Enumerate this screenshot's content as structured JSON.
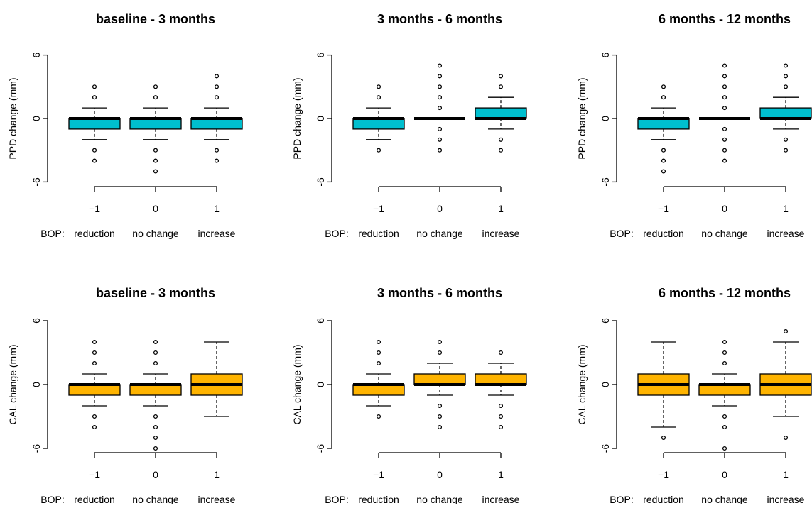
{
  "bop_prefix": "BOP:",
  "bop_labels": [
    "reduction",
    "no change",
    "increase"
  ],
  "colors": {
    "ppd_box": "#00BFCF",
    "cal_box": "#FFB400",
    "line": "#000000"
  },
  "chart_data": [
    {
      "type": "boxplot",
      "title": "baseline - 3 months",
      "ylabel": "PPD change (mm)",
      "ylim": [
        -6,
        6
      ],
      "yticks": [
        "6",
        "0",
        "-6"
      ],
      "xticks": [
        "−1",
        "0",
        "1"
      ],
      "box_color": "#00BFCF",
      "boxes": [
        {
          "x": "−1",
          "whisker_low": -2,
          "q1": -1,
          "median": 0,
          "q3": 0,
          "whisker_high": 1,
          "outliers": [
            3,
            2,
            -3,
            -4
          ]
        },
        {
          "x": "0",
          "whisker_low": -2,
          "q1": -1,
          "median": 0,
          "q3": 0,
          "whisker_high": 1,
          "outliers": [
            3,
            2,
            -3,
            -4,
            -5
          ]
        },
        {
          "x": "1",
          "whisker_low": -2,
          "q1": -1,
          "median": 0,
          "q3": 0,
          "whisker_high": 1,
          "outliers": [
            4,
            3,
            2,
            -3,
            -4
          ]
        }
      ]
    },
    {
      "type": "boxplot",
      "title": "3 months - 6 months",
      "ylabel": "PPD change (mm)",
      "ylim": [
        -6,
        6
      ],
      "yticks": [
        "6",
        "0",
        "-6"
      ],
      "xticks": [
        "−1",
        "0",
        "1"
      ],
      "box_color": "#00BFCF",
      "boxes": [
        {
          "x": "−1",
          "whisker_low": -2,
          "q1": -1,
          "median": 0,
          "q3": 0,
          "whisker_high": 1,
          "outliers": [
            3,
            2,
            -3
          ]
        },
        {
          "x": "0",
          "whisker_low": 0,
          "q1": 0,
          "median": 0,
          "q3": 0,
          "whisker_high": 0,
          "outliers": [
            5,
            4,
            3,
            2,
            1,
            -1,
            -2,
            -3
          ]
        },
        {
          "x": "1",
          "whisker_low": -1,
          "q1": 0,
          "median": 0,
          "q3": 1,
          "whisker_high": 2,
          "outliers": [
            4,
            3,
            -2,
            -3
          ]
        }
      ]
    },
    {
      "type": "boxplot",
      "title": "6 months - 12 months",
      "ylabel": "PPD change (mm)",
      "ylim": [
        -6,
        6
      ],
      "yticks": [
        "6",
        "0",
        "-6"
      ],
      "xticks": [
        "−1",
        "0",
        "1"
      ],
      "box_color": "#00BFCF",
      "boxes": [
        {
          "x": "−1",
          "whisker_low": -2,
          "q1": -1,
          "median": 0,
          "q3": 0,
          "whisker_high": 1,
          "outliers": [
            3,
            2,
            -3,
            -4,
            -5
          ]
        },
        {
          "x": "0",
          "whisker_low": 0,
          "q1": 0,
          "median": 0,
          "q3": 0,
          "whisker_high": 0,
          "outliers": [
            5,
            4,
            3,
            2,
            1,
            -1,
            -2,
            -3,
            -4
          ]
        },
        {
          "x": "1",
          "whisker_low": -1,
          "q1": 0,
          "median": 0,
          "q3": 1,
          "whisker_high": 2,
          "outliers": [
            5,
            4,
            3,
            -2,
            -3
          ]
        }
      ]
    },
    {
      "type": "boxplot",
      "title": "baseline - 3 months",
      "ylabel": "CAL change (mm)",
      "ylim": [
        -6,
        6
      ],
      "yticks": [
        "6",
        "0",
        "-6"
      ],
      "xticks": [
        "−1",
        "0",
        "1"
      ],
      "box_color": "#FFB400",
      "boxes": [
        {
          "x": "−1",
          "whisker_low": -2,
          "q1": -1,
          "median": 0,
          "q3": 0,
          "whisker_high": 1,
          "outliers": [
            4,
            3,
            2,
            -3,
            -4
          ]
        },
        {
          "x": "0",
          "whisker_low": -2,
          "q1": -1,
          "median": 0,
          "q3": 0,
          "whisker_high": 1,
          "outliers": [
            4,
            3,
            2,
            -3,
            -4,
            -5,
            -6
          ]
        },
        {
          "x": "1",
          "whisker_low": -3,
          "q1": -1,
          "median": 0,
          "q3": 1,
          "whisker_high": 4,
          "outliers": []
        }
      ]
    },
    {
      "type": "boxplot",
      "title": "3 months - 6 months",
      "ylabel": "CAL change (mm)",
      "ylim": [
        -6,
        6
      ],
      "yticks": [
        "6",
        "0",
        "-6"
      ],
      "xticks": [
        "−1",
        "0",
        "1"
      ],
      "box_color": "#FFB400",
      "boxes": [
        {
          "x": "−1",
          "whisker_low": -2,
          "q1": -1,
          "median": 0,
          "q3": 0,
          "whisker_high": 1,
          "outliers": [
            4,
            3,
            2,
            -3
          ]
        },
        {
          "x": "0",
          "whisker_low": -1,
          "q1": 0,
          "median": 0,
          "q3": 1,
          "whisker_high": 2,
          "outliers": [
            4,
            3,
            -2,
            -3,
            -4
          ]
        },
        {
          "x": "1",
          "whisker_low": -1,
          "q1": 0,
          "median": 0,
          "q3": 1,
          "whisker_high": 2,
          "outliers": [
            3,
            -2,
            -3,
            -4
          ]
        }
      ]
    },
    {
      "type": "boxplot",
      "title": "6 months - 12 months",
      "ylabel": "CAL change (mm)",
      "ylim": [
        -6,
        6
      ],
      "yticks": [
        "6",
        "0",
        "-6"
      ],
      "xticks": [
        "−1",
        "0",
        "1"
      ],
      "box_color": "#FFB400",
      "boxes": [
        {
          "x": "−1",
          "whisker_low": -4,
          "q1": -1,
          "median": 0,
          "q3": 1,
          "whisker_high": 4,
          "outliers": [
            -5
          ]
        },
        {
          "x": "0",
          "whisker_low": -2,
          "q1": -1,
          "median": 0,
          "q3": 0,
          "whisker_high": 1,
          "outliers": [
            4,
            3,
            2,
            -3,
            -4,
            -6
          ]
        },
        {
          "x": "1",
          "whisker_low": -3,
          "q1": -1,
          "median": 0,
          "q3": 1,
          "whisker_high": 4,
          "outliers": [
            5,
            -5
          ]
        }
      ]
    }
  ]
}
